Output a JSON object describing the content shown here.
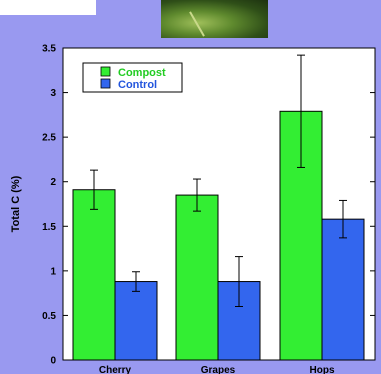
{
  "chart_data": {
    "type": "bar",
    "categories": [
      "Cherry",
      "Grapes",
      "Hops"
    ],
    "series": [
      {
        "name": "Compost",
        "values": [
          1.91,
          1.85,
          2.79
        ],
        "errors": [
          0.22,
          0.18,
          0.63
        ],
        "color": "#33ee33"
      },
      {
        "name": "Control",
        "values": [
          0.88,
          0.88,
          1.58
        ],
        "errors": [
          0.11,
          0.28,
          0.21
        ],
        "color": "#3366ee"
      }
    ],
    "ylabel": "Total C (%)",
    "ylim": [
      0,
      3.5
    ],
    "yticks": [
      "0",
      "0.5",
      "1",
      "1.5",
      "2",
      "2.5",
      "3",
      "3.5"
    ],
    "legend_position": "top-left",
    "grid": false
  },
  "colors": {
    "background": "#9999f0",
    "plot_area": "#ffffff",
    "legend_compost_text": "#22cc22",
    "legend_control_text": "#2255dd"
  }
}
